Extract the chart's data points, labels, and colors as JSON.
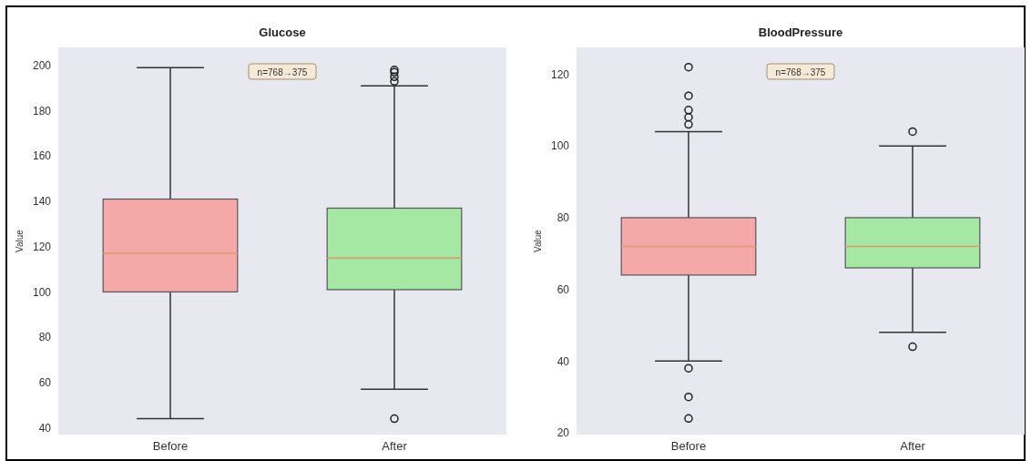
{
  "chart_data": [
    {
      "type": "box",
      "title": "Glucose",
      "ylabel": "Value",
      "categories": [
        "Before",
        "After"
      ],
      "colors": [
        "#f4a8a8",
        "#a4e8a4"
      ],
      "ylim": [
        37,
        208
      ],
      "yticks": [
        40,
        60,
        80,
        100,
        120,
        140,
        160,
        180,
        200
      ],
      "annotations": [
        "n=768→375"
      ],
      "boxes": [
        {
          "low": 44,
          "q1": 100,
          "median": 117,
          "q3": 141,
          "high": 199
        },
        {
          "low": 57,
          "q1": 101,
          "median": 115,
          "q3": 137,
          "high": 191,
          "outliers": [
            44,
            193,
            195,
            197,
            198
          ]
        }
      ]
    },
    {
      "type": "box",
      "title": "BloodPressure",
      "ylabel": "Value",
      "categories": [
        "Before",
        "After"
      ],
      "colors": [
        "#f4a8a8",
        "#a4e8a4"
      ],
      "ylim": [
        19.5,
        127.5
      ],
      "yticks": [
        20,
        40,
        60,
        80,
        100,
        120
      ],
      "annotations": [
        "n=768→375"
      ],
      "boxes": [
        {
          "low": 40,
          "q1": 64,
          "median": 72,
          "q3": 80,
          "high": 104,
          "outliers": [
            122,
            114,
            110,
            108,
            106,
            38,
            30,
            24
          ]
        },
        {
          "low": 48,
          "q1": 66,
          "median": 72,
          "q3": 80,
          "high": 100,
          "outliers": [
            104,
            44
          ]
        }
      ]
    }
  ]
}
